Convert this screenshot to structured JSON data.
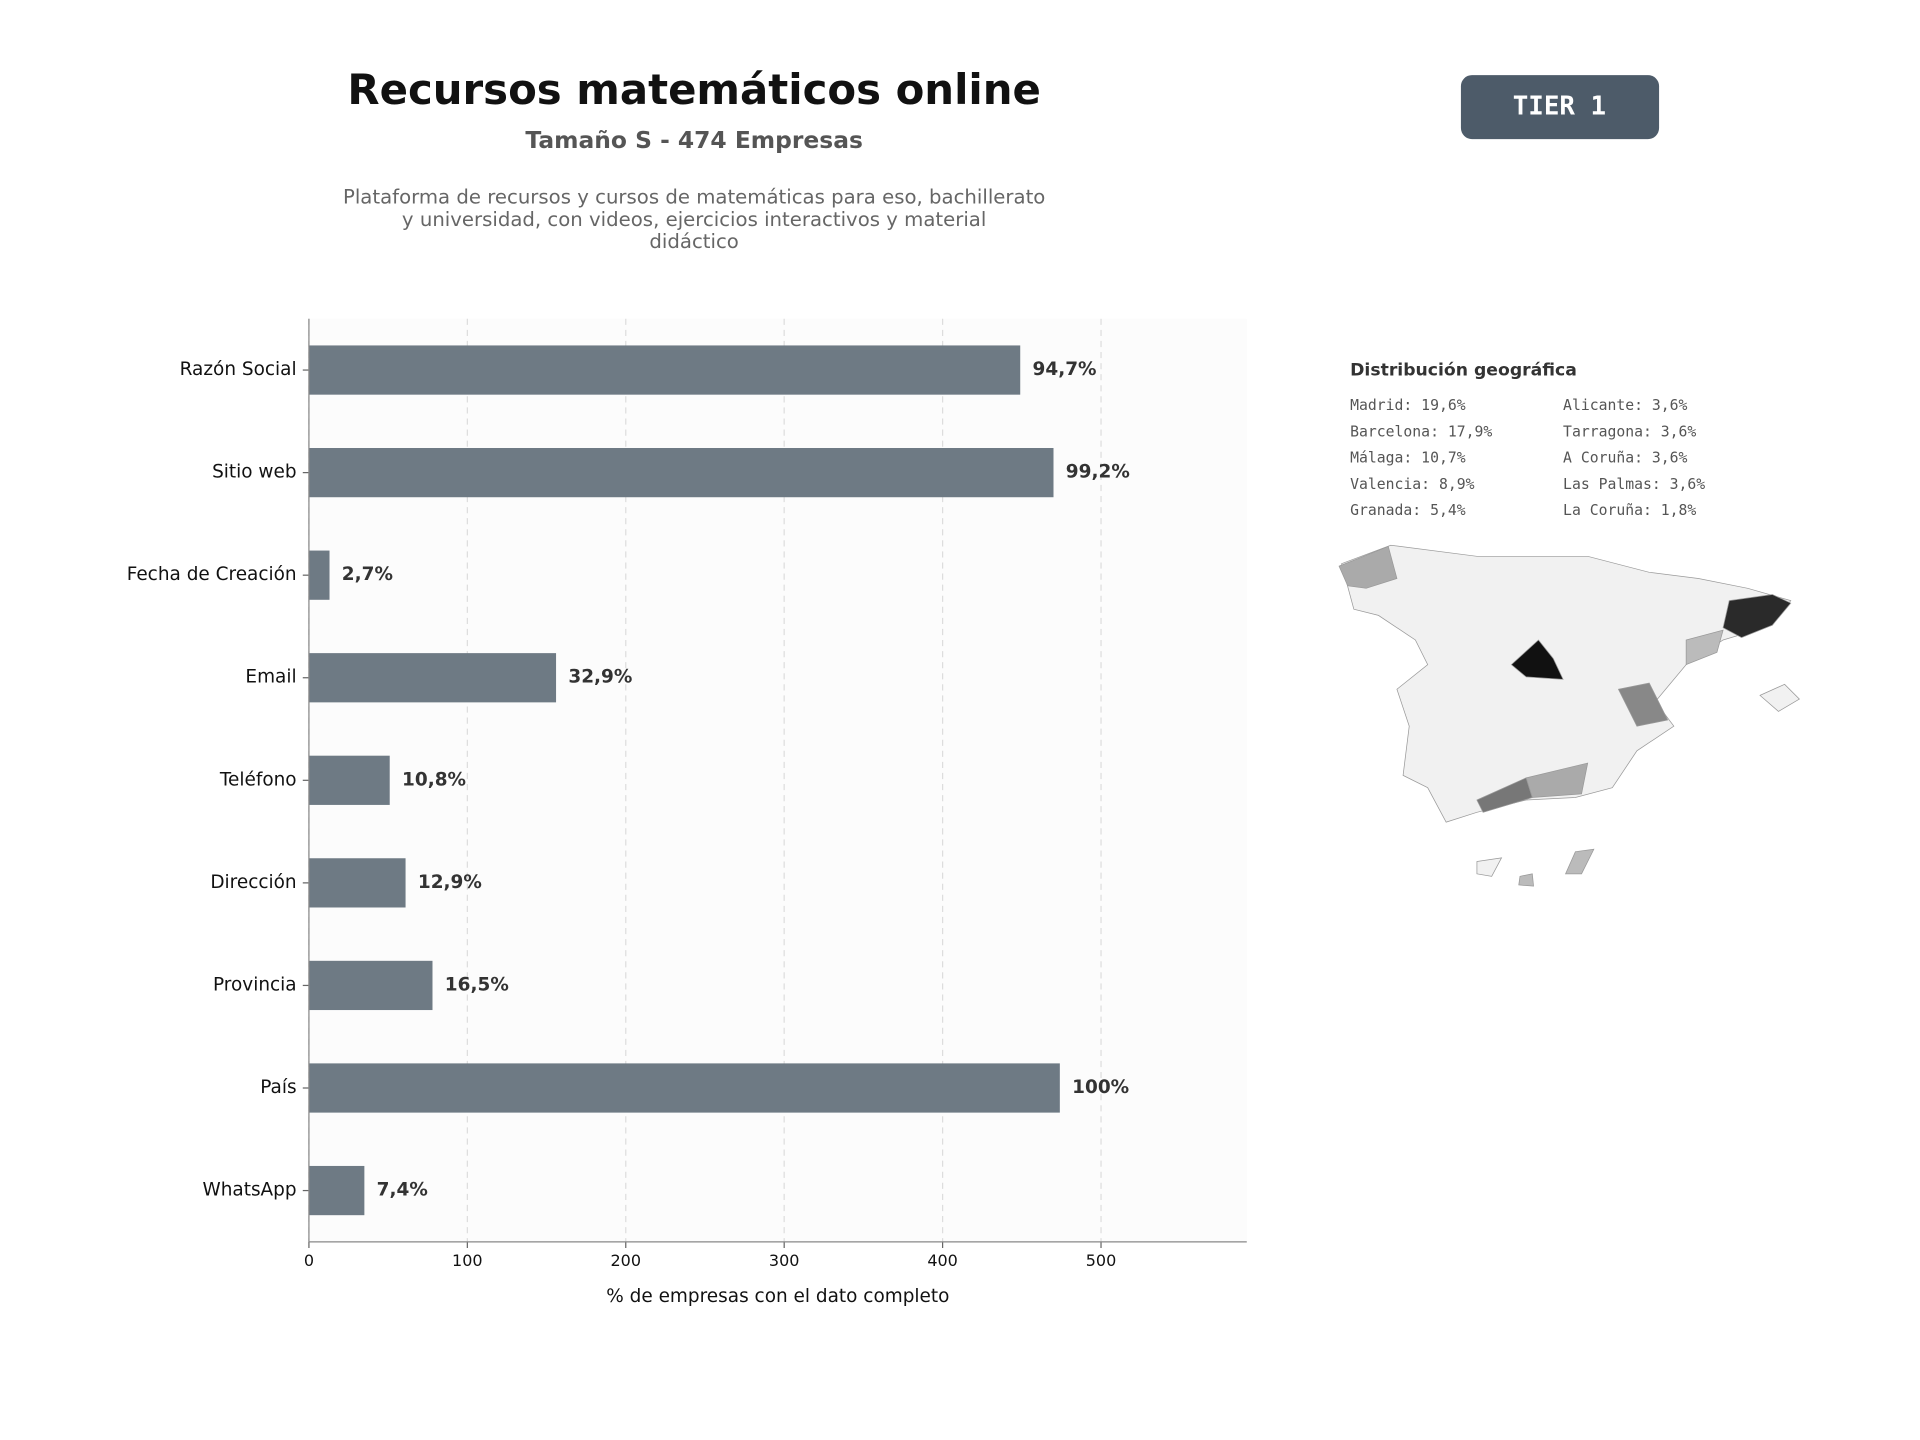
{
  "header": {
    "title": "Recursos matemáticos online",
    "subtitle": "Tamaño S - 474 Empresas",
    "description": [
      "Plataforma de recursos y cursos de matemáticas para eso, bachillerato",
      "y universidad, con videos, ejercicios interactivos y material",
      "didáctico"
    ]
  },
  "badge": "TIER 1",
  "geo": {
    "title": "Distribución geográfica",
    "items": [
      "Madrid: 19,6%",
      "Barcelona: 17,9%",
      "Málaga: 10,7%",
      "Valencia: 8,9%",
      "Granada: 5,4%",
      "Alicante: 3,6%",
      "Tarragona: 3,6%",
      "A Coruña: 3,6%",
      "Las Palmas: 3,6%",
      "La Coruña: 1,8%"
    ]
  },
  "chart_data": {
    "type": "hbar",
    "x_label": "% de empresas con el dato completo",
    "categories": [
      "Razón Social",
      "Sitio web",
      "Fecha de Creación",
      "Email",
      "Teléfono",
      "Dirección",
      "Provincia",
      "País",
      "WhatsApp"
    ],
    "values": [
      449,
      470,
      13,
      156,
      51,
      61,
      78,
      474,
      35
    ],
    "value_labels": [
      "94,7%",
      "99,2%",
      "2,7%",
      "32,9%",
      "10,8%",
      "12,9%",
      "16,5%",
      "100%",
      "7,4%"
    ],
    "color": "#6e7a84",
    "xlim": [
      0,
      592
    ],
    "xticks": [
      0,
      100,
      200,
      300,
      400,
      500
    ],
    "grid": true
  }
}
